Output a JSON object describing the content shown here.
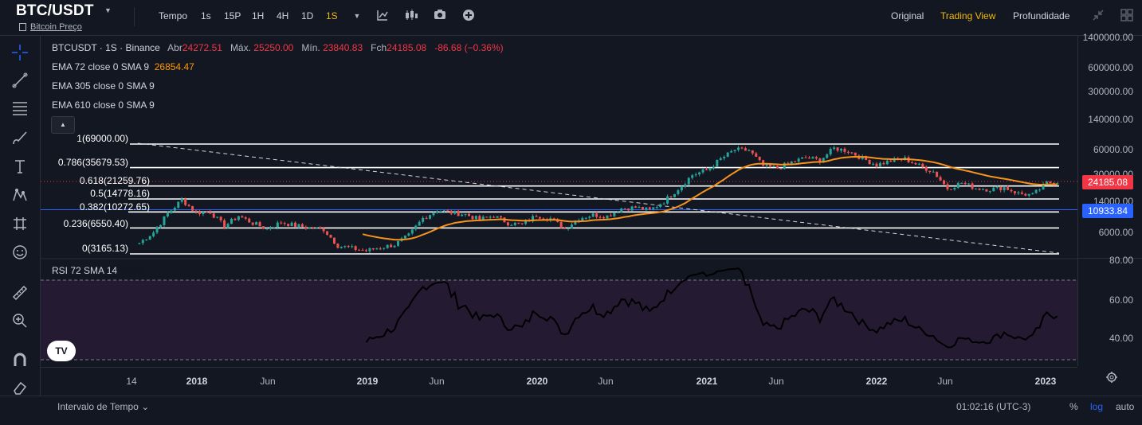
{
  "header": {
    "symbol": "BTC/USDT",
    "subtitle": "Bitcoin Preço",
    "intervals": [
      "Tempo",
      "1s",
      "15P",
      "1H",
      "4H",
      "1D",
      "1S"
    ],
    "active_interval": "1S",
    "view_tabs": [
      "Original",
      "Trading View",
      "Profundidade"
    ],
    "active_view": "Trading View",
    "icons": [
      "chevron-down-icon",
      "indicators-icon",
      "candles-icon",
      "camera-icon",
      "add-icon",
      "fullscreen-icon",
      "grid-icon"
    ]
  },
  "left_toolbar": {
    "icons": [
      "crosshair-icon",
      "trendline-icon",
      "fib-levels-icon",
      "brush-icon",
      "text-icon",
      "pattern-icon",
      "forecast-icon",
      "emoji-icon",
      "ruler-icon",
      "zoom-icon",
      "magnet-icon",
      "eraser-icon",
      "lock-icon"
    ]
  },
  "legend": {
    "title": "BTCUSDT · 1S · Binance",
    "open_label": "Abr",
    "open": "24272.51",
    "high_label": "Máx.",
    "high": "25250.00",
    "low_label": "Mín.",
    "low": "23840.83",
    "close_label": "Fch",
    "close": "24185.08",
    "change": "-86.68 (−0.36%)",
    "ema1": "EMA 72 close 0 SMA 9",
    "ema1_value": "26854.47",
    "ema2": "EMA 305 close 0 SMA 9",
    "ema3": "EMA 610 close 0 SMA 9"
  },
  "fib_levels": [
    {
      "label": "1(69000.00)",
      "price": 69000
    },
    {
      "label": "0.786(35679.53)",
      "price": 35679.53
    },
    {
      "label": "0.618(21259.76)",
      "price": 21259.76
    },
    {
      "label": "0.5(14778.16)",
      "price": 14778.16
    },
    {
      "label": "0.382(10272.65)",
      "price": 10272.65
    },
    {
      "label": "0.236(6550.40)",
      "price": 6550.4
    },
    {
      "label": "0(3165.13)",
      "price": 3165.13
    }
  ],
  "price_axis": {
    "scale": "log",
    "ticks": [
      "1400000.00",
      "600000.00",
      "300000.00",
      "140000.00",
      "60000.00",
      "30000.00",
      "14000.00",
      "6000.00"
    ],
    "last_price": "24185.08",
    "last_price_color": "#f23645",
    "line_price": "10933.84",
    "line_color": "#2962ff"
  },
  "rsi": {
    "label": "RSI 72 SMA 14",
    "value": "48.94",
    "ticks": [
      "80.00",
      "60.00",
      "40.00"
    ],
    "upper": 70,
    "lower": 30,
    "band_color": "#2b1d38"
  },
  "time_axis": {
    "ticks": [
      {
        "label": "14",
        "bold": false
      },
      {
        "label": "2018",
        "bold": true
      },
      {
        "label": "Jun",
        "bold": false
      },
      {
        "label": "2019",
        "bold": true
      },
      {
        "label": "Jun",
        "bold": false
      },
      {
        "label": "2020",
        "bold": true
      },
      {
        "label": "Jun",
        "bold": false
      },
      {
        "label": "2021",
        "bold": true
      },
      {
        "label": "Jun",
        "bold": false
      },
      {
        "label": "2022",
        "bold": true
      },
      {
        "label": "Jun",
        "bold": false
      },
      {
        "label": "2023",
        "bold": true
      }
    ]
  },
  "bottom": {
    "range_label": "Intervalo de Tempo",
    "clock": "01:02:16 (UTC-3)",
    "percent": "%",
    "log": "log",
    "auto": "auto"
  },
  "colors": {
    "up": "#26a69a",
    "down": "#ef5350",
    "ema": "#f7931a",
    "background": "#131722"
  },
  "chart_data": {
    "type": "candlestick",
    "series": [
      {
        "name": "BTCUSDT",
        "points": [
          [
            "2017-09",
            4300
          ],
          [
            "2017-10",
            5800
          ],
          [
            "2017-11",
            9800
          ],
          [
            "2017-12",
            14500
          ],
          [
            "2018-01",
            10100
          ],
          [
            "2018-02",
            10300
          ],
          [
            "2018-03",
            6900
          ],
          [
            "2018-04",
            9200
          ],
          [
            "2018-05",
            7500
          ],
          [
            "2018-06",
            6400
          ],
          [
            "2018-07",
            7700
          ],
          [
            "2018-08",
            7000
          ],
          [
            "2018-09",
            6600
          ],
          [
            "2018-10",
            6300
          ],
          [
            "2018-11",
            4000
          ],
          [
            "2018-12",
            3700
          ],
          [
            "2019-01",
            3450
          ],
          [
            "2019-02",
            3800
          ],
          [
            "2019-03",
            4100
          ],
          [
            "2019-04",
            5300
          ],
          [
            "2019-05",
            8600
          ],
          [
            "2019-06",
            10800
          ],
          [
            "2019-07",
            10100
          ],
          [
            "2019-08",
            9600
          ],
          [
            "2019-09",
            8300
          ],
          [
            "2019-10",
            9200
          ],
          [
            "2019-11",
            7550
          ],
          [
            "2019-12",
            7200
          ],
          [
            "2020-01",
            9350
          ],
          [
            "2020-02",
            8550
          ],
          [
            "2020-03",
            6400
          ],
          [
            "2020-04",
            8650
          ],
          [
            "2020-05",
            9450
          ],
          [
            "2020-06",
            9150
          ],
          [
            "2020-07",
            11350
          ],
          [
            "2020-08",
            11650
          ],
          [
            "2020-09",
            10800
          ],
          [
            "2020-10",
            13800
          ],
          [
            "2020-11",
            19700
          ],
          [
            "2020-12",
            29000
          ],
          [
            "2021-01",
            33100
          ],
          [
            "2021-02",
            45200
          ],
          [
            "2021-03",
            58900
          ],
          [
            "2021-04",
            57700
          ],
          [
            "2021-05",
            37300
          ],
          [
            "2021-06",
            35000
          ],
          [
            "2021-07",
            41500
          ],
          [
            "2021-08",
            47100
          ],
          [
            "2021-09",
            43800
          ],
          [
            "2021-10",
            61300
          ],
          [
            "2021-11",
            57000
          ],
          [
            "2021-12",
            46200
          ],
          [
            "2022-01",
            38500
          ],
          [
            "2022-02",
            43200
          ],
          [
            "2022-03",
            45500
          ],
          [
            "2022-04",
            37600
          ],
          [
            "2022-05",
            31800
          ],
          [
            "2022-06",
            19900
          ],
          [
            "2022-07",
            23300
          ],
          [
            "2022-08",
            20000
          ],
          [
            "2022-09",
            19400
          ],
          [
            "2022-10",
            20500
          ],
          [
            "2022-11",
            17200
          ],
          [
            "2022-12",
            16550
          ],
          [
            "2023-01",
            23100
          ],
          [
            "2023-02",
            24185
          ]
        ]
      }
    ]
  }
}
